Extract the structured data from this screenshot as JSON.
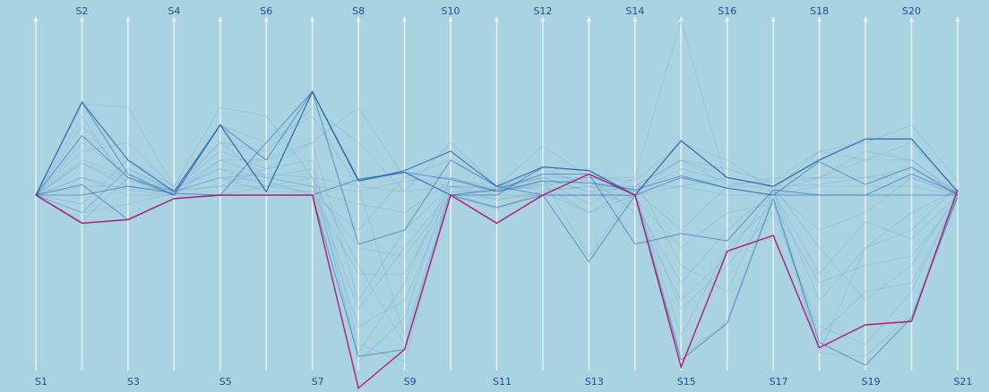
{
  "chart_data": {
    "type": "parallel-coordinates",
    "axes": [
      "S1",
      "S2",
      "S3",
      "S4",
      "S5",
      "S6",
      "S7",
      "S8",
      "S9",
      "S10",
      "S11",
      "S12",
      "S13",
      "S14",
      "S15",
      "S16",
      "S17",
      "S18",
      "S19",
      "S20",
      "S21"
    ],
    "label_position": "alternating (odd axes bottom, even axes top)",
    "ylim": [
      -1,
      1
    ],
    "colors": {
      "background": "#aad3e2",
      "axis": "#eef6fa",
      "lines": "#1e5aa8",
      "highlight": "#b0146e",
      "labels": "#1f4e8c"
    },
    "series": [
      {
        "values": [
          0,
          -0.16,
          -0.14,
          -0.02,
          0,
          0,
          0,
          -1.1,
          -0.88,
          0,
          -0.16,
          0,
          0.12,
          0,
          -0.98,
          -0.32,
          -0.23,
          -0.87,
          -0.74,
          -0.72,
          0.03
        ],
        "highlight": true
      },
      {
        "values": [
          0,
          0.53,
          0.2,
          0.02,
          0.4,
          0.02,
          0.59,
          0.08,
          0.14,
          0.25,
          0.05,
          0.16,
          0.14,
          0,
          0.31,
          0.1,
          0.05,
          0.2,
          0.32,
          0.32,
          0.02
        ],
        "strong": true
      },
      {
        "values": [
          0,
          0.34,
          0.1,
          0,
          0.4,
          0.2,
          0.59,
          0.09,
          0.13,
          0.09,
          0.02,
          0.08,
          0.07,
          0.03,
          0.11,
          0.04,
          0,
          0.19,
          0.06,
          0.16,
          0
        ],
        "strong": true
      },
      {
        "values": [
          0,
          -0.16,
          -0.14,
          -0.02,
          0,
          0,
          0,
          -0.92,
          -0.88,
          0,
          -0.07,
          0,
          -0.38,
          0,
          -0.94,
          -0.73,
          -0.02,
          -0.84,
          -0.97,
          -0.7,
          -0.01
        ],
        "strong": true
      },
      {
        "values": [
          0,
          0.53,
          0.12,
          0,
          0.4,
          0.02,
          0.59,
          0.08,
          0.13,
          0,
          0,
          0.16,
          0.14,
          0,
          0.31,
          0.1,
          0.05,
          0.2,
          0.32,
          0.32,
          0.02
        ],
        "strong": true
      },
      {
        "values": [
          0,
          0.06,
          -0.14,
          -0.02,
          0,
          0.3,
          0.59,
          -0.28,
          -0.2,
          0.2,
          0.05,
          0,
          0,
          0,
          0.1,
          0.04,
          0,
          0,
          0,
          0,
          0
        ],
        "strong": true
      },
      {
        "values": [
          0,
          0.53,
          0.2,
          0.02,
          0.4,
          0.02,
          0.59,
          0.08,
          0.14,
          0.25,
          0.05,
          0.16,
          0.14,
          0,
          0.31,
          0.1,
          0.05,
          0.2,
          0.32,
          0.32,
          0.02
        ],
        "strong": true
      },
      {
        "values": [
          0,
          0,
          0.05,
          0.01,
          0,
          0,
          0,
          0.09,
          0.13,
          0,
          0.03,
          0.12,
          0.12,
          -0.28,
          -0.22,
          -0.26,
          0.03,
          0,
          0,
          0.12,
          0.01
        ],
        "strong": true
      },
      {
        "values": [
          0,
          0.2,
          0.1,
          0.02,
          0.1,
          0.08,
          0,
          -0.45,
          -0.45,
          0,
          0,
          0.09,
          -0.35,
          0.03,
          -0.92,
          -0.72,
          0,
          -0.9,
          -0.92,
          -0.68,
          0
        ]
      },
      {
        "values": [
          0,
          0.1,
          0.03,
          0,
          0.2,
          0.1,
          0.05,
          0.02,
          0.08,
          0.1,
          0.02,
          0.06,
          -0.1,
          0.05,
          0.2,
          0.1,
          0.05,
          0.06,
          0.1,
          0.1,
          0
        ]
      },
      {
        "values": [
          0,
          0.18,
          0.08,
          0.03,
          0.25,
          0.15,
          0.3,
          -0.6,
          -0.2,
          0.05,
          -0.03,
          0.02,
          0.05,
          -0.02,
          -0.3,
          -0.1,
          -0.05,
          -0.5,
          -0.4,
          -0.35,
          -0.02
        ]
      },
      {
        "values": [
          0,
          -0.1,
          0.15,
          0.02,
          0.1,
          0.12,
          0.1,
          -0.9,
          -0.5,
          0.1,
          0.03,
          0.12,
          0.08,
          0.02,
          0.15,
          0.08,
          0.02,
          0.1,
          0.25,
          0.2,
          0.01
        ]
      },
      {
        "values": [
          0,
          0.4,
          0.1,
          0.02,
          0.3,
          0.25,
          0.5,
          0.3,
          0.02,
          0.3,
          0.05,
          0.28,
          0.1,
          0.1,
          1,
          0.05,
          0.1,
          0.1,
          0.1,
          0.15,
          0.02
        ]
      },
      {
        "values": [
          0,
          0.52,
          0.5,
          0.05,
          0.5,
          0.45,
          0.1,
          0.05,
          0.02,
          0.05,
          0.04,
          0.15,
          0.05,
          0.05,
          0.2,
          0.06,
          0.08,
          0.25,
          0.3,
          0.4,
          0.08
        ]
      },
      {
        "values": [
          0,
          -0.1,
          -0.05,
          0.01,
          0,
          0.05,
          0.02,
          -0.75,
          -0.6,
          0,
          -0.08,
          0.02,
          -0.1,
          0,
          -0.65,
          -0.4,
          -0.1,
          -0.75,
          -0.85,
          -0.55,
          0
        ]
      },
      {
        "values": [
          0,
          0.3,
          0.12,
          0.03,
          0.15,
          0.1,
          0.05,
          -0.3,
          -0.35,
          0,
          0.04,
          0.1,
          0.02,
          0.05,
          0.05,
          0.1,
          0.05,
          -0.3,
          -0.6,
          -0.4,
          0.01
        ]
      },
      {
        "values": [
          0,
          0.18,
          0.05,
          0.03,
          0.2,
          0.2,
          0.3,
          0.5,
          0.1,
          0.2,
          0.05,
          0.1,
          0.02,
          -0.05,
          -0.5,
          -0.2,
          0.02,
          -0.2,
          -0.1,
          0.1,
          0
        ]
      },
      {
        "values": [
          0,
          -0.05,
          0.2,
          0.05,
          0.3,
          0.1,
          0.15,
          -0.95,
          -0.7,
          0.1,
          0.02,
          0.08,
          -0.05,
          0.1,
          -0.4,
          -0.55,
          0.02,
          -0.6,
          -0.3,
          -0.2,
          0.05
        ]
      },
      {
        "values": [
          0,
          0.25,
          0.3,
          0.04,
          0.15,
          0.05,
          0.1,
          -0.4,
          -0.85,
          0.05,
          0.03,
          0.05,
          0.1,
          0.08,
          0.3,
          0.2,
          0.03,
          0.25,
          0.2,
          0.3,
          0.02
        ]
      },
      {
        "values": [
          0,
          0.1,
          0,
          0,
          0,
          0,
          0,
          -0.2,
          0.1,
          0.05,
          0,
          0,
          0,
          0,
          0.05,
          0,
          0,
          0.05,
          0.05,
          0.05,
          0
        ]
      },
      {
        "values": [
          0,
          -0.15,
          0.1,
          0.02,
          0.05,
          0.05,
          0.05,
          -0.65,
          -0.3,
          0.02,
          0.02,
          0.1,
          0.1,
          -0.1,
          -0.6,
          -0.35,
          0.02,
          -0.45,
          -0.15,
          -0.25,
          0
        ]
      },
      {
        "values": [
          0,
          0.05,
          0.05,
          0.02,
          0.1,
          0.02,
          0.02,
          -0.05,
          -0.1,
          0.08,
          0.06,
          0.03,
          0.05,
          0.02,
          0.2,
          0.15,
          0.07,
          0.1,
          0.2,
          0.2,
          0.01
        ]
      },
      {
        "values": [
          0,
          0.45,
          0.05,
          0.01,
          0.4,
          0.3,
          0.45,
          0.05,
          -0.8,
          0,
          -0.02,
          0,
          0,
          0,
          -0.8,
          -0.3,
          -0.05,
          -0.8,
          -0.55,
          -0.5,
          -0.02
        ]
      },
      {
        "values": [
          0,
          -0.1,
          0.15,
          0.03,
          0.05,
          0.15,
          0.2,
          -0.85,
          -0.95,
          0.05,
          0.05,
          0.06,
          0.1,
          0.03,
          -0.2,
          0.05,
          0.05,
          -0.9,
          -0.3,
          -0.1,
          0.03
        ]
      }
    ]
  }
}
